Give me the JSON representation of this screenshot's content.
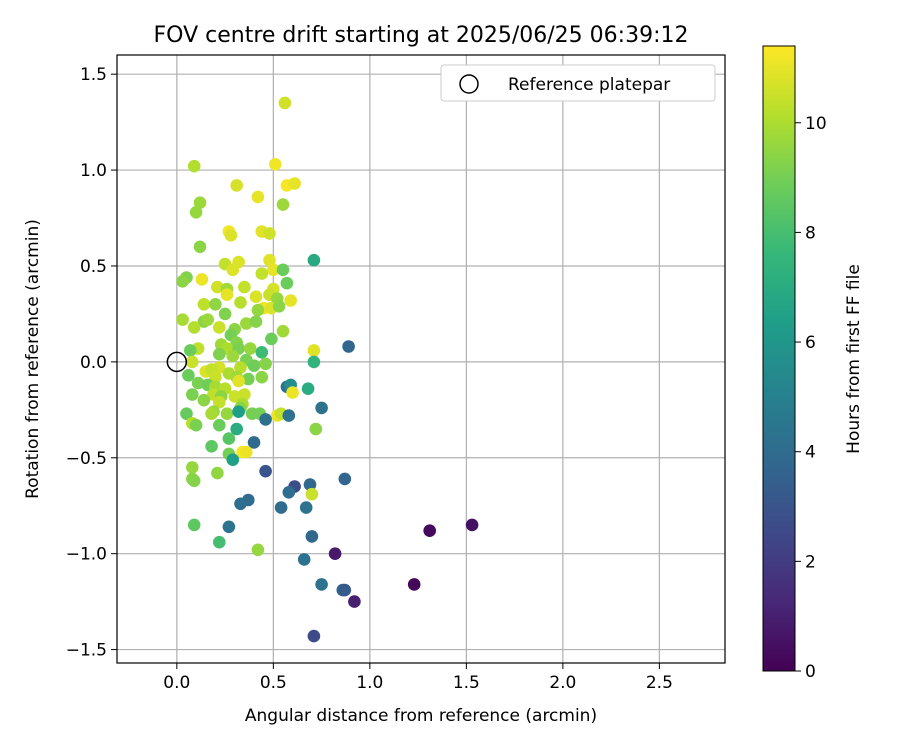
{
  "chart_data": {
    "type": "scatter",
    "title": "FOV centre drift starting at 2025/06/25 06:39:12",
    "xlabel": "Angular distance from reference (arcmin)",
    "ylabel": "Rotation from reference (arcmin)",
    "xlim": [
      -0.31,
      2.84
    ],
    "ylim": [
      -1.57,
      1.6
    ],
    "xticks": [
      0.0,
      0.5,
      1.0,
      1.5,
      2.0,
      2.5
    ],
    "xtick_labels": [
      "0.0",
      "0.5",
      "1.0",
      "1.5",
      "2.0",
      "2.5"
    ],
    "yticks": [
      -1.5,
      -1.0,
      -0.5,
      0.0,
      0.5,
      1.0,
      1.5
    ],
    "ytick_labels": [
      "−1.5",
      "−1.0",
      "−0.5",
      "0.0",
      "0.5",
      "1.0",
      "1.5"
    ],
    "grid": true,
    "legend": {
      "position": "top-right",
      "entries": [
        {
          "label": "Reference platepar",
          "marker": "open-circle"
        }
      ]
    },
    "reference_point": {
      "x": 0.0,
      "y": 0.0
    },
    "colorbar": {
      "label": "Hours from first FF file",
      "colormap": "viridis",
      "range": [
        0,
        11.4
      ],
      "ticks": [
        0,
        2,
        4,
        6,
        8,
        10
      ],
      "tick_labels": [
        "0",
        "2",
        "4",
        "6",
        "8",
        "10"
      ]
    },
    "series": [
      {
        "points": [
          [
            0.56,
            1.35,
            10.6
          ],
          [
            0.09,
            1.02,
            10.1
          ],
          [
            0.51,
            1.03,
            11.2
          ],
          [
            0.57,
            0.92,
            11.3
          ],
          [
            0.61,
            0.93,
            11.0
          ],
          [
            0.31,
            0.92,
            10.7
          ],
          [
            0.12,
            0.83,
            9.7
          ],
          [
            0.1,
            0.78,
            9.6
          ],
          [
            0.42,
            0.86,
            11.0
          ],
          [
            0.55,
            0.82,
            9.7
          ],
          [
            0.27,
            0.68,
            11.2
          ],
          [
            0.28,
            0.66,
            10.8
          ],
          [
            0.44,
            0.68,
            10.9
          ],
          [
            0.48,
            0.67,
            10.6
          ],
          [
            0.12,
            0.6,
            9.4
          ],
          [
            0.48,
            0.53,
            10.9
          ],
          [
            0.71,
            0.53,
            6.9
          ],
          [
            0.25,
            0.51,
            10.4
          ],
          [
            0.32,
            0.52,
            10.8
          ],
          [
            0.29,
            0.48,
            10.8
          ],
          [
            0.44,
            0.46,
            10.4
          ],
          [
            0.5,
            0.48,
            11.0
          ],
          [
            0.55,
            0.48,
            8.8
          ],
          [
            0.05,
            0.44,
            9.2
          ],
          [
            0.03,
            0.42,
            9.4
          ],
          [
            0.13,
            0.43,
            11.1
          ],
          [
            0.21,
            0.39,
            10.6
          ],
          [
            0.26,
            0.38,
            9.8
          ],
          [
            0.35,
            0.39,
            10.4
          ],
          [
            0.5,
            0.38,
            10.7
          ],
          [
            0.57,
            0.41,
            8.8
          ],
          [
            0.26,
            0.35,
            11.0
          ],
          [
            0.41,
            0.34,
            10.8
          ],
          [
            0.48,
            0.35,
            10.5
          ],
          [
            0.52,
            0.33,
            9.6
          ],
          [
            0.59,
            0.32,
            11.0
          ],
          [
            0.14,
            0.3,
            10.3
          ],
          [
            0.2,
            0.3,
            9.5
          ],
          [
            0.33,
            0.31,
            10.2
          ],
          [
            0.45,
            0.28,
            11.1
          ],
          [
            0.49,
            0.28,
            10.8
          ],
          [
            0.53,
            0.29,
            9.4
          ],
          [
            0.42,
            0.27,
            9.6
          ],
          [
            0.25,
            0.25,
            9.2
          ],
          [
            0.03,
            0.22,
            9.9
          ],
          [
            0.14,
            0.21,
            9.4
          ],
          [
            0.16,
            0.22,
            9.7
          ],
          [
            0.09,
            0.18,
            10.1
          ],
          [
            0.22,
            0.18,
            10.5
          ],
          [
            0.3,
            0.17,
            9.4
          ],
          [
            0.36,
            0.2,
            9.7
          ],
          [
            0.41,
            0.21,
            9.3
          ],
          [
            0.55,
            0.16,
            9.8
          ],
          [
            0.28,
            0.14,
            9.0
          ],
          [
            0.49,
            0.12,
            8.8
          ],
          [
            0.31,
            0.1,
            9.3
          ],
          [
            0.23,
            0.09,
            9.8
          ],
          [
            0.26,
            0.07,
            10.0
          ],
          [
            0.32,
            0.07,
            9.1
          ],
          [
            0.11,
            0.07,
            10.3
          ],
          [
            0.38,
            0.07,
            9.6
          ],
          [
            0.44,
            0.05,
            7.8
          ],
          [
            0.71,
            0.06,
            10.9
          ],
          [
            0.07,
            0.06,
            8.8
          ],
          [
            0.22,
            0.04,
            9.2
          ],
          [
            0.29,
            0.03,
            9.7
          ],
          [
            0.36,
            0.01,
            9.1
          ],
          [
            0.08,
            0.0,
            10.5
          ],
          [
            0.71,
            0.0,
            7.4
          ],
          [
            0.4,
            -0.02,
            8.9
          ],
          [
            0.22,
            -0.03,
            10.7
          ],
          [
            0.15,
            -0.05,
            10.8
          ],
          [
            0.18,
            -0.04,
            10.4
          ],
          [
            0.33,
            -0.03,
            10.2
          ],
          [
            0.46,
            -0.01,
            9.3
          ],
          [
            0.27,
            -0.06,
            10.0
          ],
          [
            0.06,
            -0.07,
            8.8
          ],
          [
            0.2,
            -0.08,
            10.5
          ],
          [
            0.31,
            -0.08,
            9.8
          ],
          [
            0.37,
            -0.09,
            9.0
          ],
          [
            0.44,
            -0.08,
            9.4
          ],
          [
            0.11,
            -0.11,
            9.1
          ],
          [
            0.16,
            -0.12,
            8.9
          ],
          [
            0.2,
            -0.13,
            9.9
          ],
          [
            0.25,
            -0.14,
            10.2
          ],
          [
            0.32,
            -0.1,
            10.9
          ],
          [
            0.57,
            -0.13,
            4.3
          ],
          [
            0.59,
            -0.12,
            5.6
          ],
          [
            0.68,
            -0.14,
            7.0
          ],
          [
            0.08,
            -0.17,
            9.1
          ],
          [
            0.19,
            -0.17,
            10.3
          ],
          [
            0.23,
            -0.18,
            9.4
          ],
          [
            0.3,
            -0.18,
            10.5
          ],
          [
            0.35,
            -0.17,
            10.5
          ],
          [
            0.6,
            -0.16,
            11.1
          ],
          [
            0.14,
            -0.2,
            9.4
          ],
          [
            0.22,
            -0.21,
            10.4
          ],
          [
            0.34,
            -0.22,
            10.0
          ],
          [
            0.33,
            -0.24,
            9.4
          ],
          [
            0.75,
            -0.24,
            4.3
          ],
          [
            0.19,
            -0.26,
            9.6
          ],
          [
            0.05,
            -0.27,
            8.7
          ],
          [
            0.18,
            -0.27,
            9.9
          ],
          [
            0.26,
            -0.27,
            9.6
          ],
          [
            0.32,
            -0.26,
            6.4
          ],
          [
            0.39,
            -0.27,
            9.0
          ],
          [
            0.43,
            -0.27,
            9.0
          ],
          [
            0.52,
            -0.28,
            11.1
          ],
          [
            0.54,
            -0.27,
            10.4
          ],
          [
            0.58,
            -0.28,
            4.3
          ],
          [
            0.08,
            -0.32,
            10.2
          ],
          [
            0.1,
            -0.33,
            9.1
          ],
          [
            0.22,
            -0.33,
            8.8
          ],
          [
            0.46,
            -0.3,
            4.2
          ],
          [
            0.31,
            -0.35,
            7.0
          ],
          [
            0.72,
            -0.35,
            9.4
          ],
          [
            0.27,
            -0.4,
            8.4
          ],
          [
            0.4,
            -0.42,
            3.9
          ],
          [
            0.18,
            -0.44,
            8.5
          ],
          [
            0.27,
            -0.48,
            9.0
          ],
          [
            0.34,
            -0.47,
            11.3
          ],
          [
            0.36,
            -0.47,
            11.1
          ],
          [
            0.29,
            -0.51,
            6.4
          ],
          [
            0.08,
            -0.55,
            9.6
          ],
          [
            0.46,
            -0.57,
            3.0
          ],
          [
            0.08,
            -0.61,
            9.4
          ],
          [
            0.09,
            -0.62,
            9.3
          ],
          [
            0.21,
            -0.58,
            9.5
          ],
          [
            0.61,
            -0.65,
            2.7
          ],
          [
            0.58,
            -0.68,
            4.1
          ],
          [
            0.69,
            -0.64,
            3.8
          ],
          [
            0.7,
            -0.69,
            10.5
          ],
          [
            0.87,
            -0.61,
            3.7
          ],
          [
            0.37,
            -0.72,
            4.0
          ],
          [
            0.33,
            -0.74,
            4.1
          ],
          [
            0.54,
            -0.76,
            4.0
          ],
          [
            0.67,
            -0.76,
            4.3
          ],
          [
            0.09,
            -0.85,
            8.5
          ],
          [
            0.27,
            -0.86,
            4.3
          ],
          [
            0.7,
            -0.91,
            3.8
          ],
          [
            0.22,
            -0.94,
            8.0
          ],
          [
            0.42,
            -0.98,
            9.6
          ],
          [
            0.66,
            -1.03,
            4.3
          ],
          [
            0.82,
            -1.0,
            0.8
          ],
          [
            0.75,
            -1.16,
            4.3
          ],
          [
            0.86,
            -1.19,
            3.6
          ],
          [
            0.87,
            -1.19,
            3.2
          ],
          [
            0.92,
            -1.25,
            1.0
          ],
          [
            0.71,
            -1.43,
            2.6
          ],
          [
            1.23,
            -1.16,
            0.2
          ],
          [
            1.31,
            -0.88,
            0.3
          ],
          [
            1.53,
            -0.85,
            0.5
          ],
          [
            0.89,
            0.08,
            3.7
          ]
        ]
      }
    ]
  }
}
